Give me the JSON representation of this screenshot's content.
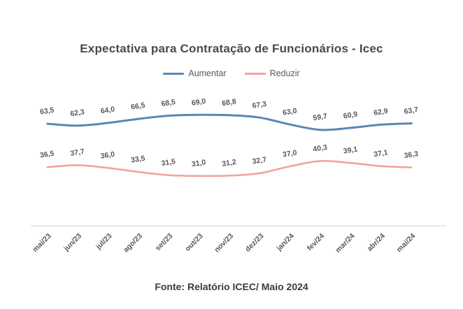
{
  "chart_data": {
    "type": "line",
    "title": "Expectativa para Contratação de Funcionários - Icec",
    "categories": [
      "mai/23",
      "jun/23",
      "jul/23",
      "ago/23",
      "set/23",
      "out/23",
      "nov/23",
      "dez/23",
      "jan/24",
      "fev/24",
      "mar/24",
      "abr/24",
      "mai/24"
    ],
    "series": [
      {
        "name": "Aumentar",
        "color": "#5b87b5",
        "values": [
          63.5,
          62.3,
          64.0,
          66.5,
          68.5,
          69.0,
          68.8,
          67.3,
          63.0,
          59.7,
          60.9,
          62.9,
          63.7
        ],
        "labels": [
          "63,5",
          "62,3",
          "64,0",
          "66,5",
          "68,5",
          "69,0",
          "68,8",
          "67,3",
          "63,0",
          "59,7",
          "60,9",
          "62,9",
          "63,7"
        ]
      },
      {
        "name": "Reduzir",
        "color": "#f2a49c",
        "values": [
          36.5,
          37.7,
          36.0,
          33.5,
          31.5,
          31.0,
          31.2,
          32.7,
          37.0,
          40.3,
          39.1,
          37.1,
          36.3
        ],
        "labels": [
          "36,5",
          "37,7",
          "36,0",
          "33,5",
          "31,5",
          "31,0",
          "31,2",
          "32,7",
          "37,0",
          "40,3",
          "39,1",
          "37,1",
          "36,3"
        ]
      }
    ],
    "ylim": [
      0,
      80
    ],
    "grid": false,
    "legend_position": "top",
    "smoothed_lines": true,
    "decimal_separator": ",",
    "data_label_color": "#595959",
    "tick_label_color": "#595959",
    "axis_line_color": "#dcdcdc"
  },
  "source_caption": "Fonte: Relatório ICEC/ Maio 2024"
}
